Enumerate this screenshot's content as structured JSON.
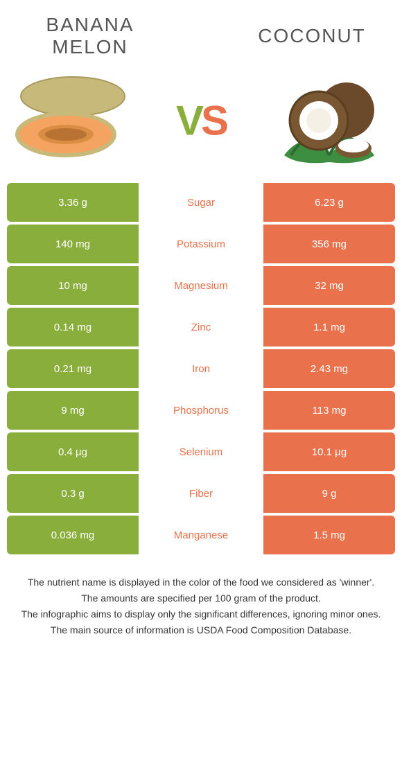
{
  "colors": {
    "left_bg": "#8aae3b",
    "right_bg": "#e9714c",
    "winner_left_text": "#8aae3b",
    "winner_right_text": "#e9714c"
  },
  "header": {
    "left_title": "Banana melon",
    "right_title": "Coconut",
    "vs_v": "V",
    "vs_s": "S"
  },
  "rows": [
    {
      "left": "3.36 g",
      "label": "Sugar",
      "right": "6.23 g",
      "winner": "right"
    },
    {
      "left": "140 mg",
      "label": "Potassium",
      "right": "356 mg",
      "winner": "right"
    },
    {
      "left": "10 mg",
      "label": "Magnesium",
      "right": "32 mg",
      "winner": "right"
    },
    {
      "left": "0.14 mg",
      "label": "Zinc",
      "right": "1.1 mg",
      "winner": "right"
    },
    {
      "left": "0.21 mg",
      "label": "Iron",
      "right": "2.43 mg",
      "winner": "right"
    },
    {
      "left": "9 mg",
      "label": "Phosphorus",
      "right": "113 mg",
      "winner": "right"
    },
    {
      "left": "0.4 µg",
      "label": "Selenium",
      "right": "10.1 µg",
      "winner": "right"
    },
    {
      "left": "0.3 g",
      "label": "Fiber",
      "right": "9 g",
      "winner": "right"
    },
    {
      "left": "0.036 mg",
      "label": "Manganese",
      "right": "1.5 mg",
      "winner": "right"
    }
  ],
  "footer": {
    "l1": "The nutrient name is displayed in the color of the food we considered as 'winner'.",
    "l2": "The amounts are specified per 100 gram of the product.",
    "l3": "The infographic aims to display only the significant differences, ignoring minor ones.",
    "l4": "The main source of information is USDA Food Composition Database."
  }
}
